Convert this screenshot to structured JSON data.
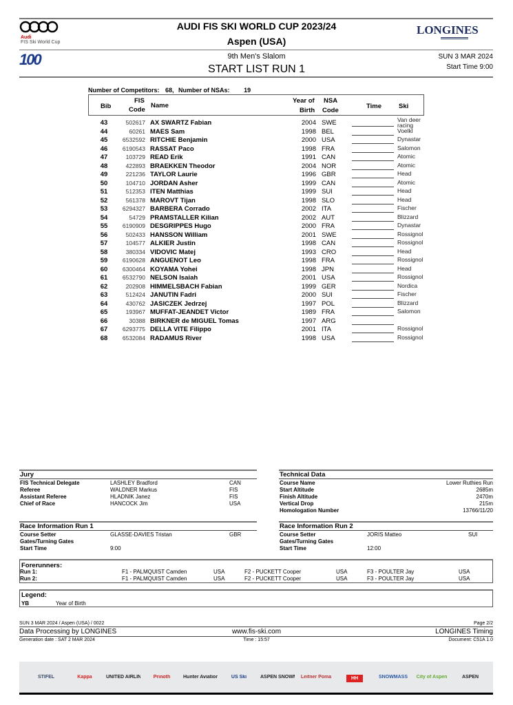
{
  "header": {
    "sponsor_logo": "Audi",
    "sponsor_sub": "FIS Ski World Cup",
    "title": "AUDI FIS SKI WORLD CUP 2023/24",
    "venue": "Aspen (USA)",
    "timing_logo": "LONGINES",
    "fis_logo": "100 FIS",
    "event": "9th Men's Slalom",
    "doc_title": "START LIST RUN 1",
    "date": "SUN 3 MAR 2024",
    "start_time": "Start Time 9:00"
  },
  "summary": {
    "competitors_label": "Number of Competitors:",
    "competitors": "68,",
    "nsas_label": "Number of NSAs:",
    "nsas": "19"
  },
  "columns": {
    "bib": "Bib",
    "fis_code_1": "FIS",
    "fis_code_2": "Code",
    "name": "Name",
    "yb_1": "Year of",
    "yb_2": "Birth",
    "nsa_1": "NSA",
    "nsa_2": "Code",
    "time": "Time",
    "ski": "Ski"
  },
  "rows": [
    [
      "43",
      "502617",
      "AX SWARTZ Fabian",
      "2004",
      "SWE",
      "Van deer racing"
    ],
    [
      "44",
      "60261",
      "MAES Sam",
      "1998",
      "BEL",
      "Voelkl"
    ],
    [
      "45",
      "6532592",
      "RITCHIE Benjamin",
      "2000",
      "USA",
      "Dynastar"
    ],
    [
      "46",
      "6190543",
      "RASSAT Paco",
      "1998",
      "FRA",
      "Salomon"
    ],
    [
      "47",
      "103729",
      "READ Erik",
      "1991",
      "CAN",
      "Atomic"
    ],
    [
      "48",
      "422893",
      "BRAEKKEN Theodor",
      "2004",
      "NOR",
      "Atomic"
    ],
    [
      "49",
      "221236",
      "TAYLOR Laurie",
      "1996",
      "GBR",
      "Head"
    ],
    [
      "50",
      "104710",
      "JORDAN Asher",
      "1999",
      "CAN",
      "Atomic"
    ],
    [
      "51",
      "512353",
      "ITEN Matthias",
      "1999",
      "SUI",
      "Head"
    ],
    [
      "52",
      "561378",
      "MAROVT Tijan",
      "1998",
      "SLO",
      "Head"
    ],
    [
      "53",
      "6294327",
      "BARBERA Corrado",
      "2002",
      "ITA",
      "Fischer"
    ],
    [
      "54",
      "54729",
      "PRAMSTALLER Kilian",
      "2002",
      "AUT",
      "Blizzard"
    ],
    [
      "55",
      "6190909",
      "DESGRIPPES Hugo",
      "2000",
      "FRA",
      "Dynastar"
    ],
    [
      "56",
      "502433",
      "HANSSON William",
      "2001",
      "SWE",
      "Rossignol"
    ],
    [
      "57",
      "104577",
      "ALKIER Justin",
      "1998",
      "CAN",
      "Rossignol"
    ],
    [
      "58",
      "380334",
      "VIDOVIC Matej",
      "1993",
      "CRO",
      "Head"
    ],
    [
      "59",
      "6190628",
      "ANGUENOT Leo",
      "1998",
      "FRA",
      "Rossignol"
    ],
    [
      "60",
      "6300464",
      "KOYAMA Yohei",
      "1998",
      "JPN",
      "Head"
    ],
    [
      "61",
      "6532790",
      "NELSON Isaiah",
      "2001",
      "USA",
      "Rossignol"
    ],
    [
      "62",
      "202908",
      "HIMMELSBACH Fabian",
      "1999",
      "GER",
      "Nordica"
    ],
    [
      "63",
      "512424",
      "JANUTIN Fadri",
      "2000",
      "SUI",
      "Fischer"
    ],
    [
      "64",
      "430762",
      "JASICZEK Jedrzej",
      "1997",
      "POL",
      "Blizzard"
    ],
    [
      "65",
      "193967",
      "MUFFAT-JEANDET Victor",
      "1989",
      "FRA",
      "Salomon"
    ],
    [
      "66",
      "30388",
      "BIRKNER de MIGUEL Tomas",
      "1997",
      "ARG",
      ""
    ],
    [
      "67",
      "6293775",
      "DELLA VITE Filippo",
      "2001",
      "ITA",
      "Rossignol"
    ],
    [
      "68",
      "6532084",
      "RADAMUS River",
      "1998",
      "USA",
      "Rossignol"
    ]
  ],
  "jury": {
    "title": "Jury",
    "items": [
      [
        "FIS Technical Delegate",
        "LASHLEY Bradford",
        "CAN"
      ],
      [
        "Referee",
        "WALDNER Markus",
        "FIS"
      ],
      [
        "Assistant Referee",
        "HLADNIK Janez",
        "FIS"
      ],
      [
        "Chief of Race",
        "HANCOCK Jim",
        "USA"
      ]
    ]
  },
  "technical": {
    "title": "Technical Data",
    "items": [
      [
        "Course Name",
        "Lower Ruthies Run"
      ],
      [
        "Start Altitude",
        "2685m"
      ],
      [
        "Finish Altitude",
        "2470m"
      ],
      [
        "Vertical Drop",
        "215m"
      ],
      [
        "Homologation Number",
        "13766/11/20"
      ]
    ]
  },
  "run1": {
    "title": "Race Information Run 1",
    "items": [
      [
        "Course Setter",
        "GLASSE-DAVIES Tristan",
        "GBR"
      ],
      [
        "Gates/Turning Gates",
        "",
        ""
      ],
      [
        "Start Time",
        "9:00",
        ""
      ]
    ]
  },
  "run2": {
    "title": "Race Information Run 2",
    "items": [
      [
        "Course Setter",
        "JORIS Matteo",
        "SUI"
      ],
      [
        "Gates/Turning Gates",
        "",
        ""
      ],
      [
        "Start Time",
        "12:00",
        ""
      ]
    ]
  },
  "forerunners": {
    "title": "Forerunners:",
    "runs": [
      [
        "Run 1:",
        "F1 - PALMQUIST Camden",
        "USA",
        "F2 - PUCKETT Cooper",
        "USA",
        "F3 - POULTER Jay",
        "USA"
      ],
      [
        "Run 2:",
        "F1 - PALMQUIST Camden",
        "USA",
        "F2 - PUCKETT Cooper",
        "USA",
        "F3 - POULTER Jay",
        "USA"
      ]
    ]
  },
  "legend": {
    "title": "Legend:",
    "abbr": "YB",
    "desc": "Year of Birth"
  },
  "footer": {
    "ref": "SUN 3 MAR 2024 / Aspen (USA) / 0022",
    "page": "Page 2/2",
    "processing": "Data Processing by LONGINES",
    "url": "www.fis-ski.com",
    "timing": "LONGINES Timing",
    "generation": "Generation date : SAT 2 MAR 2024",
    "time": "Time : 15:57",
    "document": "Document: C51A 1.0"
  },
  "sponsors": [
    "STIFEL",
    "Kappa",
    "UNITED AIRLINES",
    "Prinoth",
    "Hunter Aviation",
    "US Ski",
    "ASPEN SNOWMASS",
    "Leitner Poma",
    "HH",
    "SNOWMASS",
    "City of Aspen",
    "ASPEN"
  ]
}
